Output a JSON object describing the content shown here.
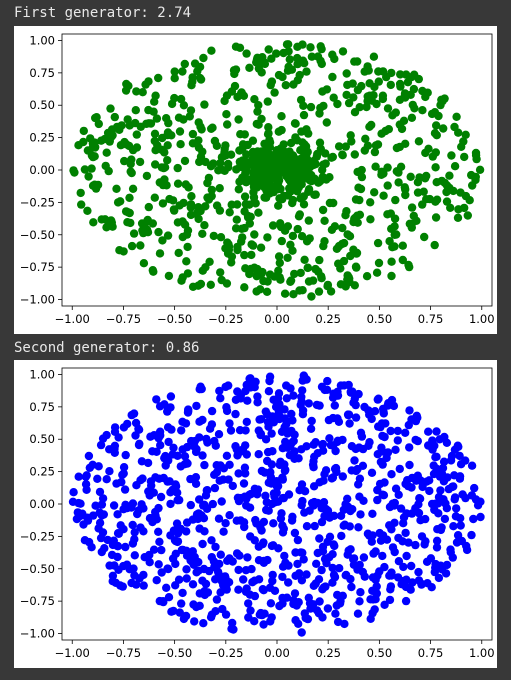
{
  "outputs": [
    {
      "label": "First generator: 2.74",
      "chart_data": {
        "type": "scatter",
        "title": "",
        "xlabel": "",
        "ylabel": "",
        "xlim": [
          -1.05,
          1.05
        ],
        "ylim": [
          -1.05,
          1.05
        ],
        "xticks": [
          "−1.00",
          "−0.75",
          "−0.50",
          "−0.25",
          "0.00",
          "0.25",
          "0.50",
          "0.75",
          "1.00"
        ],
        "yticks": [
          "1.00",
          "0.75",
          "0.50",
          "0.25",
          "0.00",
          "−0.25",
          "−0.50",
          "−0.75",
          "−1.00"
        ],
        "grid": false,
        "marker_color": "#008000",
        "distribution": "concentrated toward center",
        "n_points": 1000,
        "seed": 2740,
        "points": [
          [
            0.62,
            0.38
          ],
          [
            -0.21,
            0.77
          ],
          [
            0.05,
            0.02
          ],
          [
            -0.48,
            -0.64
          ],
          [
            0.83,
            -0.12
          ],
          [
            0.11,
            -0.93
          ],
          [
            -0.77,
            0.31
          ],
          [
            0.34,
            0.58
          ],
          [
            -0.06,
            -0.11
          ],
          [
            0.55,
            -0.55
          ],
          [
            -0.92,
            -0.05
          ],
          [
            0.27,
            0.89
          ],
          [
            -0.35,
            -0.28
          ],
          [
            0.71,
            0.61
          ],
          [
            -0.15,
            0.12
          ],
          [
            0.02,
            -0.44
          ],
          [
            -0.63,
            -0.48
          ],
          [
            0.44,
            -0.82
          ],
          [
            -0.58,
            0.71
          ],
          [
            0.91,
            0.22
          ],
          [
            0.18,
            0.07
          ],
          [
            -0.09,
            0.35
          ],
          [
            -0.27,
            -0.85
          ],
          [
            0.66,
            -0.29
          ],
          [
            -0.81,
            -0.39
          ],
          [
            0.38,
            0.12
          ],
          [
            -0.42,
            0.46
          ],
          [
            0.08,
            0.66
          ],
          [
            -0.17,
            -0.52
          ],
          [
            0.77,
            -0.58
          ]
        ]
      }
    },
    {
      "label": "Second generator: 0.86",
      "chart_data": {
        "type": "scatter",
        "title": "",
        "xlabel": "",
        "ylabel": "",
        "xlim": [
          -1.05,
          1.05
        ],
        "ylim": [
          -1.05,
          1.05
        ],
        "xticks": [
          "−1.00",
          "−0.75",
          "−0.50",
          "−0.25",
          "0.00",
          "0.25",
          "0.50",
          "0.75",
          "1.00"
        ],
        "yticks": [
          "1.00",
          "0.75",
          "0.50",
          "0.25",
          "0.00",
          "−0.25",
          "−0.50",
          "−0.75",
          "−1.00"
        ],
        "grid": false,
        "marker_color": "#0000ff",
        "distribution": "uniform over unit disk",
        "n_points": 1000,
        "seed": 860,
        "points": [
          [
            0.52,
            0.71
          ],
          [
            -0.66,
            0.33
          ],
          [
            0.14,
            -0.88
          ],
          [
            -0.41,
            -0.62
          ],
          [
            0.87,
            0.05
          ],
          [
            -0.12,
            0.91
          ],
          [
            0.35,
            -0.36
          ],
          [
            -0.85,
            -0.22
          ],
          [
            0.63,
            -0.64
          ],
          [
            -0.28,
            0.18
          ],
          [
            0.04,
            0.48
          ],
          [
            0.76,
            0.42
          ],
          [
            -0.55,
            0.77
          ],
          [
            -0.93,
            0.11
          ],
          [
            0.24,
            0.26
          ],
          [
            -0.07,
            -0.31
          ],
          [
            0.49,
            0.03
          ],
          [
            -0.71,
            -0.61
          ],
          [
            0.31,
            -0.75
          ],
          [
            0.95,
            -0.24
          ],
          [
            -0.36,
            -0.92
          ],
          [
            0.12,
            0.79
          ],
          [
            -0.18,
            0.57
          ],
          [
            0.68,
            0.18
          ],
          [
            -0.62,
            -0.11
          ],
          [
            0.41,
            0.55
          ],
          [
            -0.01,
            -0.67
          ],
          [
            0.83,
            -0.47
          ],
          [
            -0.47,
            0.29
          ],
          [
            0.22,
            -0.14
          ]
        ]
      }
    }
  ]
}
